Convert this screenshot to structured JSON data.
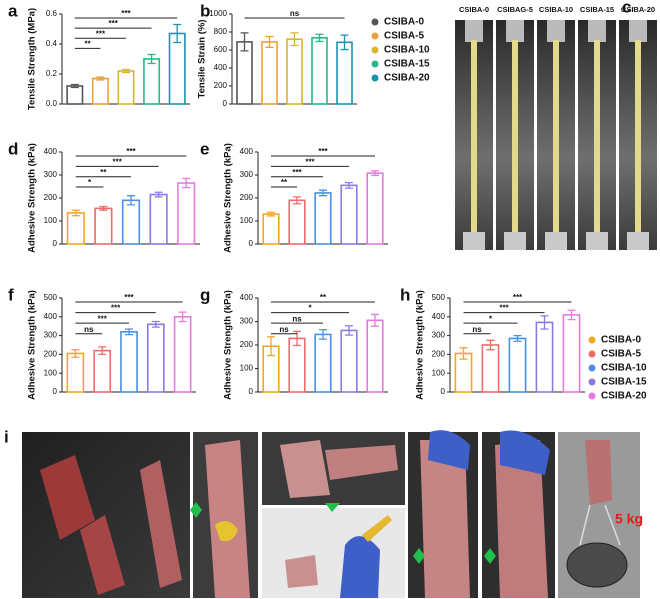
{
  "chart_data": [
    {
      "type": "bar",
      "panel": "a",
      "ylabel": "Tensile Strength (MPa)",
      "categories": [
        null,
        null,
        null,
        null,
        null
      ],
      "values": [
        0.12,
        0.17,
        0.22,
        0.3,
        0.47
      ],
      "errors": [
        0.01,
        0.01,
        0.01,
        0.03,
        0.06
      ],
      "colors": [
        "#555555",
        "#e9a23b",
        "#d9b530",
        "#22b98b",
        "#1b93ad"
      ],
      "ylim": [
        0,
        0.6
      ],
      "yticks": [
        {
          "value": 0,
          "label": "0.0"
        },
        0.2,
        0.4,
        0.6
      ],
      "brackets": [
        {
          "from": 0,
          "to": 1,
          "label": "**"
        },
        {
          "from": 0,
          "to": 2,
          "label": "***"
        },
        {
          "from": 0,
          "to": 3,
          "label": "***"
        },
        {
          "from": 0,
          "to": 4,
          "label": "***"
        }
      ]
    },
    {
      "type": "bar",
      "panel": "b",
      "ylabel": "Tensile Strain (%)",
      "categories": [
        null,
        null,
        null,
        null,
        null
      ],
      "values": [
        690,
        690,
        720,
        735,
        685
      ],
      "errors": [
        100,
        60,
        70,
        40,
        80
      ],
      "colors": [
        "#555555",
        "#e9a23b",
        "#d9b530",
        "#22b98b",
        "#1b93ad"
      ],
      "ylim": [
        0,
        1000
      ],
      "yticks": [
        0,
        200,
        400,
        600,
        800,
        1000
      ],
      "brackets": [
        {
          "from": 0,
          "to": 4,
          "label": "ns"
        }
      ]
    },
    {
      "type": "bar",
      "panel": "d",
      "ylabel": "Adhesive Strength (kPa)",
      "categories": [
        null,
        null,
        null,
        null,
        null
      ],
      "values": [
        135,
        155,
        190,
        215,
        265
      ],
      "errors": [
        12,
        8,
        20,
        10,
        20
      ],
      "colors": [
        "#f5a623",
        "#f06b6b",
        "#4a90e2",
        "#8c7ae6",
        "#e57bdc"
      ],
      "ylim": [
        0,
        400
      ],
      "yticks": [
        0,
        100,
        200,
        300,
        400
      ],
      "brackets": [
        {
          "from": 0,
          "to": 1,
          "label": "*"
        },
        {
          "from": 0,
          "to": 2,
          "label": "**"
        },
        {
          "from": 0,
          "to": 3,
          "label": "***"
        },
        {
          "from": 0,
          "to": 4,
          "label": "***"
        }
      ]
    },
    {
      "type": "bar",
      "panel": "e",
      "ylabel": "Adhesive Strength (kPa)",
      "categories": [
        null,
        null,
        null,
        null,
        null
      ],
      "values": [
        130,
        190,
        222,
        255,
        308
      ],
      "errors": [
        8,
        15,
        12,
        12,
        10
      ],
      "colors": [
        "#f5a623",
        "#f06b6b",
        "#4a90e2",
        "#8c7ae6",
        "#e57bdc"
      ],
      "ylim": [
        0,
        400
      ],
      "yticks": [
        0,
        100,
        200,
        300,
        400
      ],
      "brackets": [
        {
          "from": 0,
          "to": 1,
          "label": "**"
        },
        {
          "from": 0,
          "to": 2,
          "label": "***"
        },
        {
          "from": 0,
          "to": 3,
          "label": "***"
        },
        {
          "from": 0,
          "to": 4,
          "label": "***"
        }
      ]
    },
    {
      "type": "bar",
      "panel": "f",
      "ylabel": "Adhesive Strength (kPa)",
      "categories": [
        null,
        null,
        null,
        null,
        null
      ],
      "values": [
        205,
        220,
        320,
        360,
        400
      ],
      "errors": [
        20,
        20,
        15,
        15,
        25
      ],
      "colors": [
        "#f5a623",
        "#f06b6b",
        "#4a90e2",
        "#8c7ae6",
        "#e57bdc"
      ],
      "ylim": [
        0,
        500
      ],
      "yticks": [
        0,
        100,
        200,
        300,
        400,
        500
      ],
      "brackets": [
        {
          "from": 0,
          "to": 1,
          "label": "ns"
        },
        {
          "from": 0,
          "to": 2,
          "label": "***"
        },
        {
          "from": 0,
          "to": 3,
          "label": "***"
        },
        {
          "from": 0,
          "to": 4,
          "label": "***"
        }
      ]
    },
    {
      "type": "bar",
      "panel": "g",
      "ylabel": "Adhesive Strength (kPa)",
      "categories": [
        null,
        null,
        null,
        null,
        null
      ],
      "values": [
        195,
        228,
        245,
        262,
        305
      ],
      "errors": [
        40,
        30,
        20,
        20,
        25
      ],
      "colors": [
        "#f5a623",
        "#f06b6b",
        "#4a90e2",
        "#8c7ae6",
        "#e57bdc"
      ],
      "ylim": [
        0,
        400
      ],
      "yticks": [
        0,
        100,
        200,
        300,
        400
      ],
      "brackets": [
        {
          "from": 0,
          "to": 1,
          "label": "ns"
        },
        {
          "from": 0,
          "to": 2,
          "label": "ns"
        },
        {
          "from": 0,
          "to": 3,
          "label": "*"
        },
        {
          "from": 0,
          "to": 4,
          "label": "**"
        }
      ]
    },
    {
      "type": "bar",
      "panel": "h",
      "ylabel": "Adhesive Strength (kPa)",
      "categories": [
        null,
        null,
        null,
        null,
        null
      ],
      "values": [
        205,
        250,
        285,
        370,
        410
      ],
      "errors": [
        30,
        25,
        15,
        35,
        25
      ],
      "colors": [
        "#f5a623",
        "#f06b6b",
        "#4a90e2",
        "#8c7ae6",
        "#e57bdc"
      ],
      "ylim": [
        0,
        500
      ],
      "yticks": [
        0,
        100,
        200,
        300,
        400,
        500
      ],
      "brackets": [
        {
          "from": 0,
          "to": 1,
          "label": "ns"
        },
        {
          "from": 0,
          "to": 2,
          "label": "*"
        },
        {
          "from": 0,
          "to": 3,
          "label": "***"
        },
        {
          "from": 0,
          "to": 4,
          "label": "***"
        }
      ]
    }
  ],
  "legend_tensile": {
    "names": [
      "CSIBA-0",
      "CSIBA-5",
      "CSIBA-10",
      "CSIBA-15",
      "CSIBA-20"
    ],
    "colors": [
      "#555555",
      "#e9a23b",
      "#d9b530",
      "#22b98b",
      "#1b93ad"
    ]
  },
  "legend_adhesive": {
    "names": [
      "CSIBA-0",
      "CSIBA-5",
      "CSIBA-10",
      "CSIBA-15",
      "CSIBA-20"
    ],
    "colors": [
      "#f5a623",
      "#f06b6b",
      "#4a90e2",
      "#8c7ae6",
      "#e57bdc"
    ]
  },
  "panel_c": {
    "letter": "c",
    "labels": [
      "CSIBA-0",
      "CSIBAG-5",
      "CSIBA-10",
      "CSIBA-15",
      "CSIBA-20"
    ]
  },
  "panel_i": {
    "letter": "i",
    "weight": "5 kg"
  }
}
